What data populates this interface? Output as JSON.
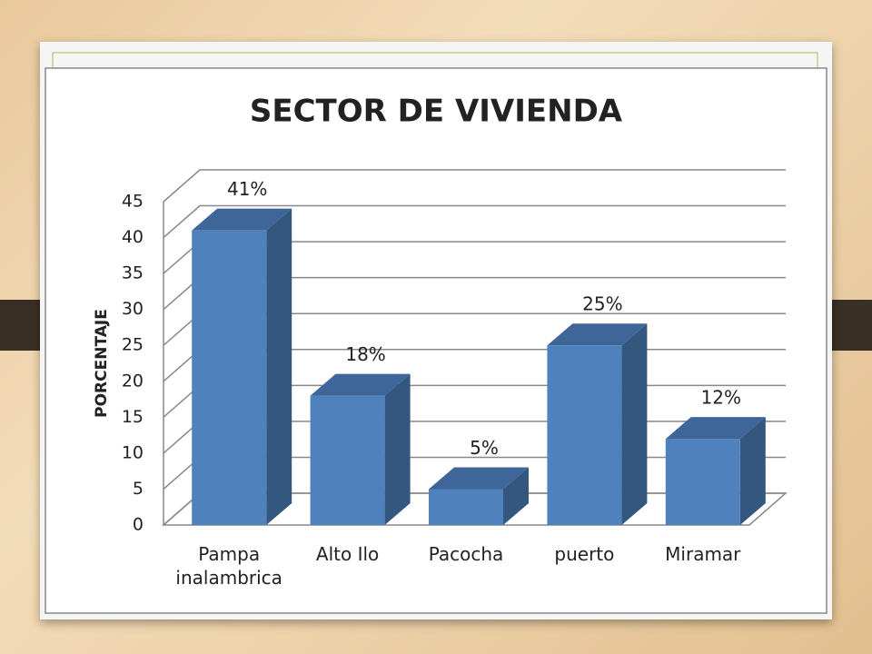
{
  "chart_data": {
    "type": "bar3d",
    "title": "SECTOR DE VIVIENDA",
    "y_label": "PORCENTAJE",
    "categories": [
      "Pampa inalambrica",
      "Alto Ilo",
      "Pacocha",
      "puerto",
      "Miramar"
    ],
    "values": [
      41,
      18,
      5,
      25,
      12
    ],
    "value_labels": [
      "41%",
      "18%",
      "5%",
      "25%",
      "12%"
    ],
    "color": "#4f81bd",
    "ylim": [
      0,
      45
    ],
    "yticks": [
      0,
      5,
      10,
      15,
      20,
      25,
      30,
      35,
      40,
      45
    ],
    "grid": true
  }
}
